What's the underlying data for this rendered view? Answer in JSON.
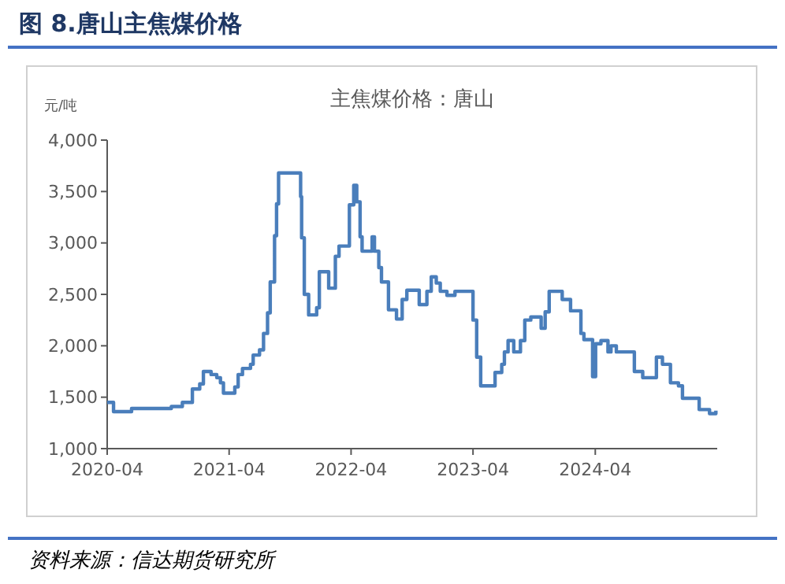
{
  "chart_data": {
    "type": "step",
    "title": "图 8.唐山主焦煤价格",
    "subtitle": "主焦煤价格：唐山",
    "ylabel": "元/吨",
    "annotations": [
      "资料来源：信达期货研究所"
    ],
    "x": [
      "2020-04-01",
      "2020-04-20",
      "2020-06-13",
      "2020-10-10",
      "2020-11-12",
      "2020-12-12",
      "2021-01-03",
      "2021-01-14",
      "2021-02-06",
      "2021-02-23",
      "2021-03-06",
      "2021-03-15",
      "2021-04-18",
      "2021-04-28",
      "2021-05-11",
      "2021-06-04",
      "2021-06-12",
      "2021-07-01",
      "2021-07-13",
      "2021-07-25",
      "2021-08-02",
      "2021-08-15",
      "2021-08-21",
      "2021-08-27",
      "2021-10-25",
      "2021-11-01",
      "2021-11-04",
      "2021-11-12",
      "2021-11-25",
      "2021-12-19",
      "2021-12-27",
      "2022-01-24",
      "2022-02-13",
      "2022-02-24",
      "2022-03-22",
      "2022-03-27",
      "2022-04-09",
      "2022-04-18",
      "2022-04-28",
      "2022-05-04",
      "2022-05-25",
      "2022-06-03",
      "2022-06-10",
      "2022-06-23",
      "2022-07-01",
      "2022-07-22",
      "2022-08-15",
      "2022-09-01",
      "2022-09-15",
      "2022-10-12",
      "2022-10-22",
      "2022-11-14",
      "2022-11-27",
      "2022-12-12",
      "2022-12-24",
      "2023-01-13",
      "2023-02-06",
      "2023-03-25",
      "2023-04-01",
      "2023-04-12",
      "2023-04-24",
      "2023-05-25",
      "2023-06-06",
      "2023-06-26",
      "2023-07-04",
      "2023-07-15",
      "2023-08-01",
      "2023-08-21",
      "2023-09-03",
      "2023-09-21",
      "2023-10-15",
      "2023-10-22",
      "2023-11-03",
      "2023-11-15",
      "2023-12-15",
      "2023-12-24",
      "2024-01-09",
      "2024-01-18",
      "2024-02-06",
      "2024-02-18",
      "2024-02-27",
      "2024-03-15",
      "2024-03-24",
      "2024-04-02",
      "2024-04-18",
      "2024-05-01",
      "2024-05-09",
      "2024-05-18",
      "2024-06-03",
      "2024-07-12",
      "2024-07-27",
      "2024-08-21",
      "2024-09-10",
      "2024-10-01",
      "2024-10-19",
      "2024-11-12",
      "2024-12-06",
      "2024-12-18",
      "2025-01-21",
      "2025-02-06",
      "2025-03-09",
      "2025-03-28"
    ],
    "series": [
      {
        "color": "#4a7ebb",
        "values": [
          1450,
          1360,
          1390,
          1410,
          1450,
          1580,
          1630,
          1750,
          1720,
          1690,
          1640,
          1540,
          1600,
          1720,
          1780,
          1820,
          1910,
          1960,
          2120,
          2320,
          2620,
          3070,
          3380,
          3680,
          3680,
          3450,
          3050,
          2500,
          2300,
          2370,
          2720,
          2560,
          2870,
          2970,
          2970,
          3370,
          3560,
          3400,
          3060,
          2920,
          2920,
          3060,
          2920,
          2760,
          2620,
          2350,
          2260,
          2450,
          2540,
          2540,
          2400,
          2530,
          2670,
          2610,
          2530,
          2490,
          2530,
          2530,
          2250,
          1890,
          1610,
          1610,
          1740,
          1820,
          1940,
          2050,
          1940,
          2050,
          2250,
          2280,
          2280,
          2170,
          2330,
          2530,
          2530,
          2450,
          2450,
          2340,
          2340,
          2120,
          2060,
          2060,
          1700,
          2020,
          2050,
          2050,
          1940,
          2000,
          1940,
          1940,
          1750,
          1690,
          1690,
          1890,
          1820,
          1640,
          1610,
          1490,
          1490,
          1380,
          1340,
          1370
        ]
      }
    ],
    "xlim": [
      "2020-04-01",
      "2025-04-01"
    ],
    "xticks": [
      "2020-04",
      "2021-04",
      "2022-04",
      "2023-04",
      "2024-04"
    ],
    "ylim": [
      1000,
      4000
    ],
    "yticks": [
      {
        "value": 1000,
        "label": "1,000"
      },
      {
        "value": 1500,
        "label": "1,500"
      },
      {
        "value": 2000,
        "label": "2,000"
      },
      {
        "value": 2500,
        "label": "2,500"
      },
      {
        "value": 3000,
        "label": "3,000"
      },
      {
        "value": 3500,
        "label": "3,500"
      },
      {
        "value": 4000,
        "label": "4,000"
      }
    ],
    "line_style": "solid",
    "marker": "none"
  }
}
